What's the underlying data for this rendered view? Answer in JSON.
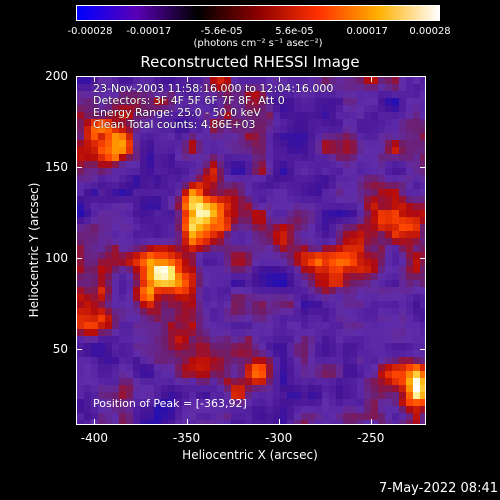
{
  "colorbar": {
    "ticks": [
      "-0.00028",
      "-0.00017",
      "-5.6e-05",
      "5.6e-05",
      "0.00017",
      "0.00028"
    ],
    "units": "(photons cm⁻² s⁻¹ asec⁻²)",
    "colors": [
      "#0000ff",
      "#5a00b4",
      "#000000",
      "#8c0000",
      "#ff3000",
      "#ffb000",
      "#ffffff"
    ]
  },
  "plot": {
    "title": "Reconstructed RHESSI Image",
    "info": [
      "23-Nov-2003 11:58:16.000 to 12:04:16.000",
      "Detectors: 3F 4F 5F 6F 7F 8F, Att 0",
      "Energy Range: 25.0 - 50.0 keV",
      "Clean     Total counts: 4.86E+03"
    ],
    "peak": "Position of Peak = [-363,92]",
    "xlabel": "Heliocentric X (arcsec)",
    "ylabel": "Heliocentric Y (arcsec)",
    "xlim": [
      -410,
      -220
    ],
    "ylim": [
      8,
      200
    ],
    "xticks": [
      -400,
      -350,
      -300,
      -250
    ],
    "yticks": [
      50,
      100,
      150,
      200
    ],
    "peak_position": [
      -363,
      92
    ],
    "sources": [
      {
        "x": -363,
        "y": 92,
        "amp": 1.0
      },
      {
        "x": -338,
        "y": 128,
        "amp": 0.9
      },
      {
        "x": -395,
        "y": 160,
        "amp": 0.75
      },
      {
        "x": -352,
        "y": 60,
        "amp": 0.55
      },
      {
        "x": -318,
        "y": 40,
        "amp": 0.5
      },
      {
        "x": -232,
        "y": 120,
        "amp": 0.6
      },
      {
        "x": -265,
        "y": 90,
        "amp": 0.55
      },
      {
        "x": -226,
        "y": 30,
        "amp": 0.65
      },
      {
        "x": -405,
        "y": 75,
        "amp": 0.45
      },
      {
        "x": -325,
        "y": 185,
        "amp": 0.35
      },
      {
        "x": -290,
        "y": 110,
        "amp": 0.3
      }
    ]
  },
  "footer": {
    "datestamp": "7-May-2022 08:41"
  }
}
